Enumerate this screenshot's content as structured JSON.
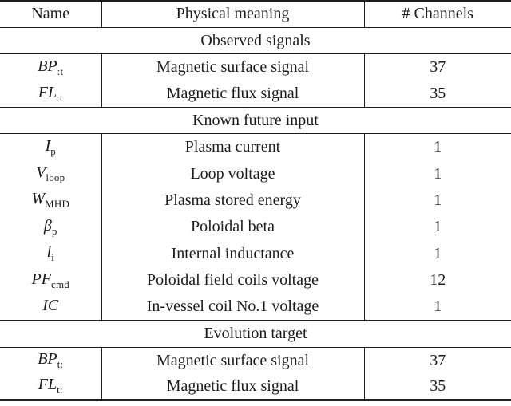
{
  "table": {
    "columns": [
      "Name",
      "Physical meaning",
      "# Channels"
    ],
    "sections": [
      {
        "title": "Observed signals",
        "rows": [
          {
            "symbol": "BP",
            "subscript": ":t",
            "meaning": "Magnetic surface signal",
            "channels": "37"
          },
          {
            "symbol": "FL",
            "subscript": ":t",
            "meaning": "Magnetic flux signal",
            "channels": "35"
          }
        ]
      },
      {
        "title": "Known future input",
        "rows": [
          {
            "symbol": "I",
            "subscript": "p",
            "meaning": "Plasma current",
            "channels": "1"
          },
          {
            "symbol": "V",
            "subscript": "loop",
            "meaning": "Loop voltage",
            "channels": "1"
          },
          {
            "symbol": "W",
            "subscript": "MHD",
            "meaning": "Plasma stored energy",
            "channels": "1"
          },
          {
            "symbol": "β",
            "subscript": "p",
            "meaning": "Poloidal beta",
            "channels": "1"
          },
          {
            "symbol": "l",
            "subscript": "i",
            "meaning": "Internal inductance",
            "channels": "1"
          },
          {
            "symbol": "PF",
            "subscript": "cmd",
            "meaning": "Poloidal field coils voltage",
            "channels": "12"
          },
          {
            "symbol": "IC",
            "subscript": "",
            "meaning": "In-vessel coil No.1 voltage",
            "channels": "1"
          }
        ]
      },
      {
        "title": "Evolution target",
        "rows": [
          {
            "symbol": "BP",
            "subscript": "t:",
            "meaning": "Magnetic surface signal",
            "channels": "37"
          },
          {
            "symbol": "FL",
            "subscript": "t:",
            "meaning": "Magnetic flux signal",
            "channels": "35"
          }
        ]
      }
    ]
  }
}
